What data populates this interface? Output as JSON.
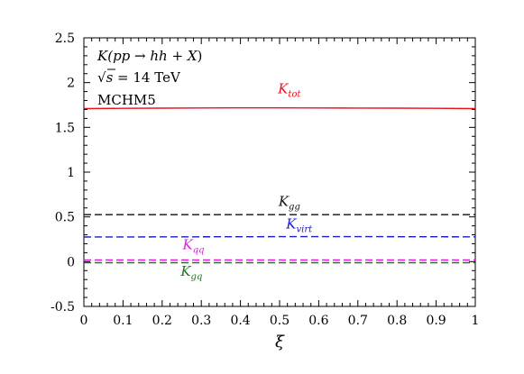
{
  "chart_data": {
    "type": "line",
    "xlabel": "ξ",
    "ylabel": "",
    "xlim": [
      0,
      1
    ],
    "ylim": [
      -0.5,
      2.5
    ],
    "x_ticks": [
      "0",
      "0.1",
      "0.2",
      "0.3",
      "0.4",
      "0.5",
      "0.6",
      "0.7",
      "0.8",
      "0.9",
      "1"
    ],
    "y_ticks": [
      "-0.5",
      "0",
      "0.5",
      "1",
      "1.5",
      "2",
      "2.5"
    ],
    "grid": false,
    "annotations": {
      "process": {
        "k": "K(",
        "pp": "pp",
        "arrow": " → ",
        "hh": "hh",
        "plus": " + ",
        "xvar": "X",
        "close": ")"
      },
      "energy": {
        "root": "√",
        "s": "s",
        "value": " = 14 TeV"
      },
      "model": "MCHM5"
    },
    "series": [
      {
        "name": "K",
        "sub": "tot",
        "color": "#e8121f",
        "dash": "solid",
        "x": [
          0,
          0.1,
          0.2,
          0.3,
          0.4,
          0.5,
          0.6,
          0.7,
          0.8,
          0.9,
          1
        ],
        "y": [
          1.71,
          1.713,
          1.715,
          1.717,
          1.718,
          1.718,
          1.717,
          1.716,
          1.715,
          1.713,
          1.71
        ],
        "label_at": [
          0.525,
          1.88
        ]
      },
      {
        "name": "K",
        "sub": "gg",
        "color": "#111111",
        "dash": "dashed",
        "x": [
          0,
          0.25,
          0.5,
          0.75,
          1
        ],
        "y": [
          0.525,
          0.525,
          0.525,
          0.525,
          0.525
        ],
        "label_at": [
          0.525,
          0.62
        ]
      },
      {
        "name": "K",
        "sub": "virt",
        "color": "#1a1acc",
        "dash": "dashed",
        "x": [
          0,
          0.25,
          0.5,
          0.75,
          1
        ],
        "y": [
          0.275,
          0.277,
          0.279,
          0.279,
          0.277
        ],
        "label_at": [
          0.55,
          0.37
        ]
      },
      {
        "name": "K",
        "sub": "qq",
        "color": "#e01ee0",
        "dash": "dashed",
        "x": [
          0,
          0.25,
          0.5,
          0.75,
          1
        ],
        "y": [
          0.018,
          0.018,
          0.018,
          0.018,
          0.018
        ],
        "label_at": [
          0.28,
          0.14
        ]
      },
      {
        "name": "K",
        "sub": "gq",
        "color": "#1a7a1a",
        "dash": "dashed",
        "x": [
          0,
          0.25,
          0.5,
          0.75,
          1
        ],
        "y": [
          -0.012,
          -0.012,
          -0.012,
          -0.012,
          -0.012
        ],
        "label_at": [
          0.275,
          -0.16
        ]
      }
    ]
  }
}
